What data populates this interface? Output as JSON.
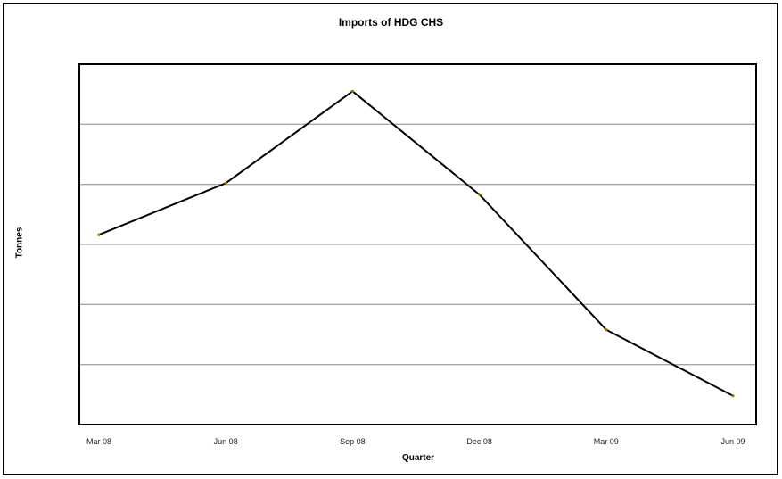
{
  "chart_data": {
    "type": "line",
    "title": "Imports of HDG CHS",
    "xlabel": "Quarter",
    "ylabel": "Tonnes",
    "categories": [
      "Mar 08",
      "Jun 08",
      "Sep 08",
      "Dec 08",
      "Mar 09",
      "Jun 09"
    ],
    "series": [
      {
        "values": [
          3.16,
          4.02,
          5.55,
          3.83,
          1.58,
          0.48
        ]
      }
    ],
    "ylim": [
      0,
      6
    ],
    "y_tick_labels_shown": false,
    "grid": true,
    "colors": {
      "line": "#000000",
      "grid": "#a6a6a6",
      "marker": "#8a7a00"
    }
  }
}
